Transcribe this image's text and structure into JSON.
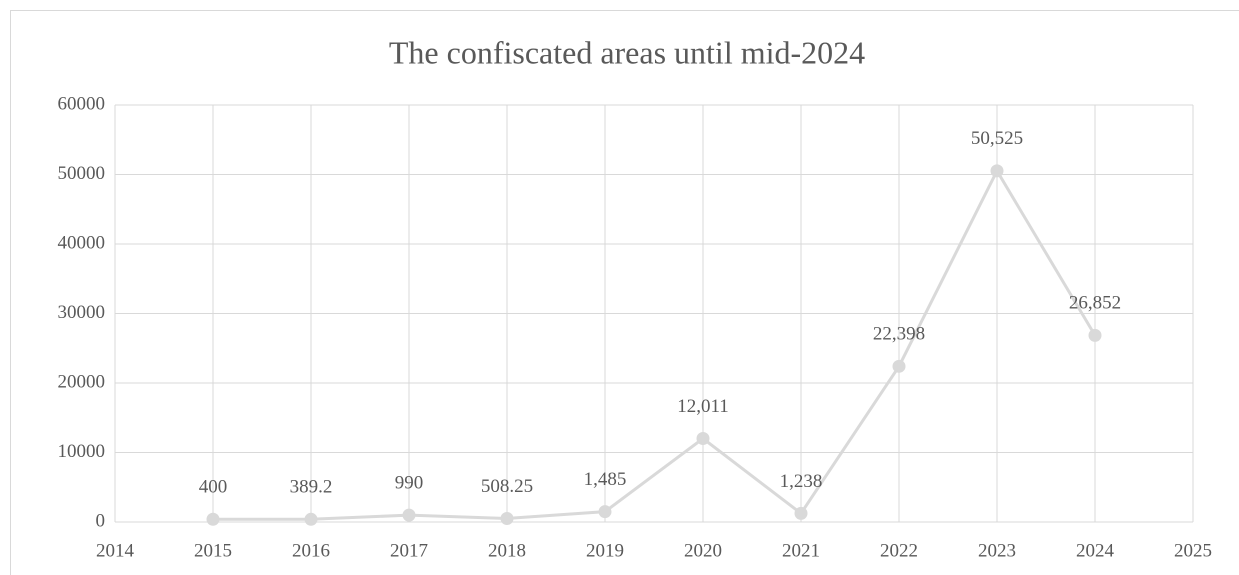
{
  "chart_data": {
    "type": "line",
    "title": "The confiscated areas until mid-2024",
    "x": [
      2015,
      2016,
      2017,
      2018,
      2019,
      2020,
      2021,
      2022,
      2023,
      2024
    ],
    "values": [
      400,
      389.2,
      990,
      508.25,
      1485,
      12011,
      1238,
      22398,
      50525,
      26852
    ],
    "value_labels": [
      "400",
      "389.2",
      "990",
      "508.25",
      "1,485",
      "12,011",
      "1,238",
      "22,398",
      "50,525",
      "26,852"
    ],
    "color": "#d9d9d9",
    "xlim": [
      2014,
      2025
    ],
    "xticks": [
      2014,
      2015,
      2016,
      2017,
      2018,
      2019,
      2020,
      2021,
      2022,
      2023,
      2024,
      2025
    ],
    "ylim": [
      0,
      60000
    ],
    "yticks": [
      0,
      10000,
      20000,
      30000,
      40000,
      50000,
      60000
    ],
    "grid": true
  }
}
